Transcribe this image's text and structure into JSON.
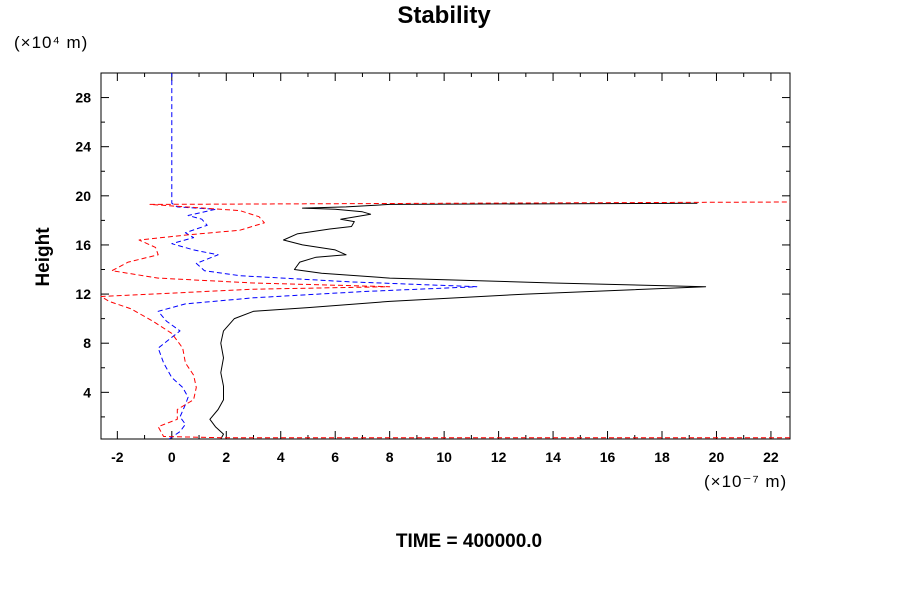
{
  "chart_data": {
    "type": "line",
    "title": "Stability",
    "ylabel": "Height",
    "y_unit": "(×10⁴ m)",
    "x_unit": "(×10⁻⁷ m)",
    "footer": "TIME = 400000.0",
    "xlim": [
      -2.6,
      22.7
    ],
    "ylim": [
      0.2,
      30.0
    ],
    "x_ticks": [
      -2,
      0,
      2,
      4,
      6,
      8,
      10,
      12,
      14,
      16,
      18,
      20,
      22
    ],
    "y_ticks": [
      4,
      8,
      12,
      16,
      20,
      24,
      28
    ],
    "grid": false,
    "series": [
      {
        "color": "#000000",
        "style": "solid",
        "points": [
          [
            1.8,
            0.2
          ],
          [
            1.9,
            0.6
          ],
          [
            1.6,
            1.2
          ],
          [
            1.4,
            1.8
          ],
          [
            1.7,
            2.6
          ],
          [
            1.9,
            3.4
          ],
          [
            1.9,
            4.5
          ],
          [
            1.8,
            5.6
          ],
          [
            1.9,
            6.8
          ],
          [
            1.8,
            8.0
          ],
          [
            1.9,
            9.0
          ],
          [
            2.3,
            10.0
          ],
          [
            3.0,
            10.6
          ],
          [
            5.0,
            10.9
          ],
          [
            8.0,
            11.4
          ],
          [
            13.0,
            12.0
          ],
          [
            19.6,
            12.6
          ],
          [
            14.0,
            12.9
          ],
          [
            8.0,
            13.3
          ],
          [
            5.5,
            13.7
          ],
          [
            4.5,
            14.0
          ],
          [
            4.7,
            14.6
          ],
          [
            5.3,
            15.0
          ],
          [
            6.4,
            15.2
          ],
          [
            6.0,
            15.6
          ],
          [
            4.8,
            16.0
          ],
          [
            4.1,
            16.4
          ],
          [
            4.6,
            16.9
          ],
          [
            5.8,
            17.3
          ],
          [
            6.6,
            17.5
          ],
          [
            6.7,
            17.9
          ],
          [
            6.2,
            18.1
          ],
          [
            7.3,
            18.5
          ],
          [
            7.0,
            18.7
          ],
          [
            6.0,
            18.9
          ],
          [
            4.8,
            19.0
          ],
          [
            6.4,
            19.1
          ],
          [
            8.0,
            19.3
          ],
          [
            19.3,
            19.4
          ]
        ]
      },
      {
        "color": "#0000ff",
        "style": "dashed",
        "points": [
          [
            -0.1,
            0.2
          ],
          [
            0.3,
            0.8
          ],
          [
            0.5,
            1.4
          ],
          [
            0.3,
            2.0
          ],
          [
            0.5,
            3.0
          ],
          [
            0.6,
            3.6
          ],
          [
            0.4,
            4.4
          ],
          [
            0.0,
            5.2
          ],
          [
            -0.3,
            6.4
          ],
          [
            -0.5,
            7.6
          ],
          [
            0.3,
            9.0
          ],
          [
            -0.2,
            9.8
          ],
          [
            -0.5,
            10.6
          ],
          [
            0.5,
            11.2
          ],
          [
            3.0,
            11.7
          ],
          [
            7.0,
            12.2
          ],
          [
            11.2,
            12.6
          ],
          [
            6.5,
            13.0
          ],
          [
            2.5,
            13.5
          ],
          [
            1.2,
            13.9
          ],
          [
            0.9,
            14.5
          ],
          [
            1.7,
            15.2
          ],
          [
            0.8,
            15.6
          ],
          [
            0.0,
            16.1
          ],
          [
            0.8,
            16.6
          ],
          [
            0.5,
            17.0
          ],
          [
            1.3,
            17.6
          ],
          [
            1.1,
            18.1
          ],
          [
            0.6,
            18.4
          ],
          [
            1.6,
            18.9
          ],
          [
            0.2,
            19.1
          ],
          [
            0.0,
            19.4
          ],
          [
            0.0,
            30.0
          ]
        ]
      },
      {
        "color": "#ff0000",
        "style": "dashed",
        "points": [
          [
            22.7,
            0.3
          ],
          [
            2.0,
            0.3
          ],
          [
            -0.3,
            0.4
          ],
          [
            -0.5,
            1.2
          ],
          [
            0.2,
            1.8
          ],
          [
            0.2,
            2.6
          ],
          [
            0.8,
            3.4
          ],
          [
            0.9,
            4.4
          ],
          [
            0.8,
            5.4
          ],
          [
            0.5,
            6.4
          ],
          [
            0.4,
            7.6
          ],
          [
            0.0,
            8.8
          ],
          [
            -0.7,
            9.8
          ],
          [
            -1.5,
            10.8
          ],
          [
            -2.3,
            11.4
          ],
          [
            -2.6,
            11.8
          ],
          [
            3.0,
            12.4
          ],
          [
            8.0,
            12.6
          ],
          [
            3.0,
            12.9
          ],
          [
            -0.5,
            13.3
          ],
          [
            -2.2,
            13.9
          ],
          [
            -1.6,
            14.6
          ],
          [
            -0.5,
            15.2
          ],
          [
            -0.6,
            15.8
          ],
          [
            -1.2,
            16.4
          ],
          [
            0.5,
            16.8
          ],
          [
            2.5,
            17.2
          ],
          [
            3.4,
            17.8
          ],
          [
            3.2,
            18.3
          ],
          [
            2.5,
            18.8
          ],
          [
            -0.8,
            19.3
          ],
          [
            22.7,
            19.5
          ]
        ]
      }
    ]
  }
}
